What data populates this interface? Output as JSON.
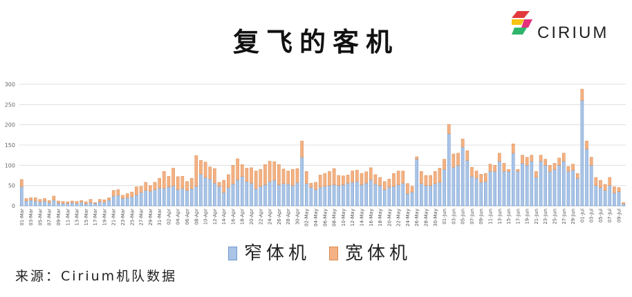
{
  "title": "复飞的客机",
  "logo": {
    "text": "CIRIUM",
    "icon": "cirium-logo-icon"
  },
  "source": "来源：Cirium机队数据",
  "colors": {
    "narrow": "#a9c4e6",
    "narrow_stroke": "#6e97cc",
    "wide": "#f4b183",
    "wide_stroke": "#d88a4f",
    "grid": "#d9d9d9",
    "axis": "#bfbfbf",
    "logo_blue": "#1f6fb2",
    "logo_red": "#e03a3e",
    "logo_yellow": "#f6c313",
    "logo_green": "#2fb56b",
    "logo_pink": "#e5307a"
  },
  "chart_data": {
    "type": "bar",
    "stacked": true,
    "title": "复飞的客机",
    "ylim": [
      0,
      300
    ],
    "yticks": [
      0,
      50,
      100,
      150,
      200,
      250,
      300
    ],
    "grid": true,
    "legend_position": "bottom",
    "categories": [
      "01-Mar",
      "02-Mar",
      "03-Mar",
      "04-Mar",
      "05-Mar",
      "06-Mar",
      "07-Mar",
      "08-Mar",
      "09-Mar",
      "10-Mar",
      "11-Mar",
      "12-Mar",
      "13-Mar",
      "14-Mar",
      "15-Mar",
      "16-Mar",
      "17-Mar",
      "18-Mar",
      "19-Mar",
      "20-Mar",
      "21-Mar",
      "22-Mar",
      "23-Mar",
      "24-Mar",
      "25-Mar",
      "26-Mar",
      "27-Mar",
      "28-Mar",
      "29-Mar",
      "30-Mar",
      "31-Mar",
      "01-Apr",
      "02-Apr",
      "03-Apr",
      "04-Apr",
      "05-Apr",
      "06-Apr",
      "07-Apr",
      "08-Apr",
      "09-Apr",
      "10-Apr",
      "11-Apr",
      "12-Apr",
      "13-Apr",
      "14-Apr",
      "15-Apr",
      "16-Apr",
      "17-Apr",
      "18-Apr",
      "19-Apr",
      "20-Apr",
      "21-Apr",
      "22-Apr",
      "23-Apr",
      "24-Apr",
      "25-Apr",
      "26-Apr",
      "27-Apr",
      "28-Apr",
      "29-Apr",
      "30-Apr",
      "01-May",
      "02-May",
      "03-May",
      "04-May",
      "05-May",
      "06-May",
      "07-May",
      "08-May",
      "09-May",
      "10-May",
      "11-May",
      "12-May",
      "13-May",
      "14-May",
      "15-May",
      "16-May",
      "17-May",
      "18-May",
      "19-May",
      "20-May",
      "21-May",
      "22-May",
      "23-May",
      "24-May",
      "25-May",
      "26-May",
      "27-May",
      "28-May",
      "29-May",
      "30-May",
      "31-May",
      "01-Jun",
      "02-Jun",
      "03-Jun",
      "04-Jun",
      "05-Jun",
      "06-Jun",
      "07-Jun",
      "08-Jun",
      "09-Jun",
      "10-Jun",
      "11-Jun",
      "12-Jun",
      "13-Jun",
      "14-Jun",
      "15-Jun",
      "16-Jun",
      "17-Jun",
      "18-Jun",
      "19-Jun",
      "20-Jun",
      "21-Jun",
      "22-Jun",
      "23-Jun",
      "24-Jun",
      "25-Jun",
      "26-Jun",
      "27-Jun",
      "28-Jun",
      "29-Jun",
      "30-Jun",
      "01-Jul",
      "02-Jul",
      "03-Jul",
      "04-Jul",
      "05-Jul",
      "06-Jul",
      "07-Jul",
      "08-Jul",
      "09-Jul",
      "10-Jul"
    ],
    "xtick_labels": [
      "01-Mar",
      "03-Mar",
      "05-Mar",
      "07-Mar",
      "09-Mar",
      "11-Mar",
      "13-Mar",
      "15-Mar",
      "17-Mar",
      "19-Mar",
      "21-Mar",
      "23-Mar",
      "25-Mar",
      "27-Mar",
      "29-Mar",
      "31-Mar",
      "02-Apr",
      "04-Apr",
      "06-Apr",
      "08-Apr",
      "10-Apr",
      "12-Apr",
      "14-Apr",
      "16-Apr",
      "18-Apr",
      "20-Apr",
      "22-Apr",
      "24-Apr",
      "26-Apr",
      "28-Apr",
      "30-Apr",
      "02-May",
      "04-May",
      "06-May",
      "08-May",
      "10-May",
      "12-May",
      "14-May",
      "16-May",
      "18-May",
      "20-May",
      "22-May",
      "24-May",
      "26-May",
      "28-May",
      "30-May",
      "01-Jun",
      "03-Jun",
      "05-Jun",
      "07-Jun",
      "09-Jun",
      "11-Jun",
      "13-Jun",
      "15-Jun",
      "17-Jun",
      "19-Jun",
      "21-Jun",
      "23-Jun",
      "25-Jun",
      "27-Jun",
      "29-Jun",
      "01-Jul",
      "03-Jul",
      "05-Jul",
      "07-Jul",
      "09-Jul"
    ],
    "series": [
      {
        "name": "窄体机",
        "values": [
          47,
          12,
          14,
          12,
          10,
          12,
          8,
          14,
          7,
          6,
          6,
          8,
          6,
          9,
          5,
          8,
          6,
          10,
          9,
          14,
          24,
          26,
          18,
          20,
          22,
          27,
          33,
          38,
          36,
          40,
          44,
          43,
          47,
          49,
          40,
          43,
          38,
          42,
          48,
          78,
          70,
          66,
          56,
          48,
          33,
          45,
          54,
          64,
          72,
          60,
          56,
          42,
          48,
          52,
          60,
          63,
          52,
          55,
          54,
          50,
          57,
          120,
          55,
          46,
          40,
          46,
          48,
          50,
          52,
          50,
          52,
          56,
          58,
          60,
          52,
          56,
          64,
          54,
          50,
          40,
          46,
          48,
          52,
          56,
          30,
          34,
          115,
          55,
          50,
          50,
          55,
          58,
          90,
          178,
          95,
          100,
          145,
          112,
          73,
          68,
          58,
          60,
          85,
          85,
          110,
          85,
          85,
          130,
          85,
          105,
          100,
          110,
          70,
          110,
          100,
          85,
          90,
          100,
          110,
          85,
          88,
          68,
          260,
          140,
          100,
          50,
          45,
          38,
          50,
          32,
          35,
          5
        ]
      },
      {
        "name": "宽体机",
        "values": [
          18,
          6,
          6,
          8,
          6,
          6,
          5,
          10,
          5,
          5,
          4,
          4,
          5,
          4,
          5,
          8,
          2,
          6,
          6,
          6,
          14,
          14,
          8,
          10,
          12,
          20,
          15,
          20,
          14,
          18,
          24,
          42,
          26,
          44,
          32,
          30,
          22,
          26,
          76,
          34,
          38,
          30,
          36,
          10,
          30,
          32,
          46,
          52,
          30,
          33,
          38,
          44,
          42,
          50,
          50,
          46,
          50,
          36,
          32,
          40,
          35,
          40,
          30,
          10,
          18,
          30,
          32,
          35,
          40,
          25,
          22,
          20,
          28,
          28,
          28,
          28,
          30,
          23,
          20,
          20,
          20,
          32,
          34,
          30,
          25,
          14,
          6,
          30,
          25,
          25,
          30,
          35,
          25,
          23,
          33,
          30,
          20,
          24,
          22,
          18,
          20,
          20,
          18,
          15,
          20,
          20,
          5,
          23,
          5,
          20,
          20,
          15,
          15,
          15,
          15,
          15,
          15,
          18,
          20,
          12,
          15,
          12,
          28,
          20,
          20,
          20,
          18,
          15,
          20,
          15,
          10,
          3
        ]
      }
    ]
  }
}
